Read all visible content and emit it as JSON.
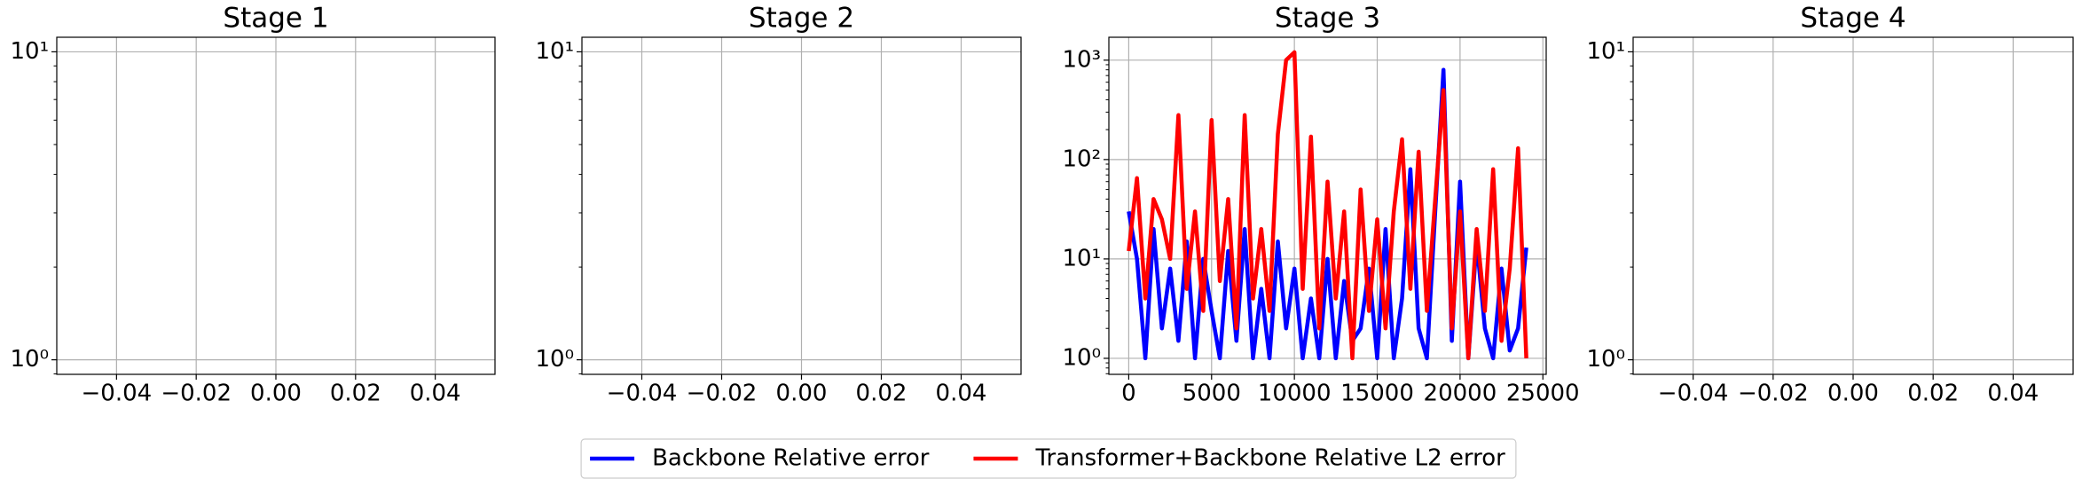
{
  "chart_data": [
    {
      "type": "line",
      "title": "Stage 1",
      "ylog": true,
      "grid": true,
      "xlim": [
        -0.055,
        0.055
      ],
      "xticks": [
        {
          "value": -0.04,
          "label": "−0.04"
        },
        {
          "value": -0.02,
          "label": "−0.02"
        },
        {
          "value": 0,
          "label": "0.00"
        },
        {
          "value": 0.02,
          "label": "0.02"
        },
        {
          "value": 0.04,
          "label": "0.04"
        }
      ],
      "ylim": [
        0.897,
        11.15
      ],
      "yticks": [
        {
          "value": 1,
          "label": "10⁰"
        },
        {
          "value": 10,
          "label": "10¹"
        }
      ]
    },
    {
      "type": "line",
      "title": "Stage 2",
      "ylog": true,
      "grid": true,
      "xlim": [
        -0.055,
        0.055
      ],
      "xticks": [
        {
          "value": -0.04,
          "label": "−0.04"
        },
        {
          "value": -0.02,
          "label": "−0.02"
        },
        {
          "value": 0,
          "label": "0.00"
        },
        {
          "value": 0.02,
          "label": "0.02"
        },
        {
          "value": 0.04,
          "label": "0.04"
        }
      ],
      "ylim": [
        0.897,
        11.15
      ],
      "yticks": [
        {
          "value": 1,
          "label": "10⁰"
        },
        {
          "value": 10,
          "label": "10¹"
        }
      ]
    },
    {
      "type": "line",
      "title": "Stage 3",
      "ylog": true,
      "grid": true,
      "legend": "below",
      "xlim": [
        -1200,
        25200
      ],
      "xticks": [
        0,
        5000,
        10000,
        15000,
        20000,
        25000
      ],
      "ylim": [
        0.69,
        1700
      ],
      "yticks": [
        {
          "value": 1,
          "label": "10⁰"
        },
        {
          "value": 10,
          "label": "10¹"
        },
        {
          "value": 100,
          "label": "10²"
        },
        {
          "value": 1000,
          "label": "10³"
        }
      ],
      "x": [
        0,
        500,
        1000,
        1500,
        2000,
        2500,
        3000,
        3500,
        4000,
        4500,
        5000,
        5500,
        6000,
        6500,
        7000,
        7500,
        8000,
        8500,
        9000,
        9500,
        10000,
        10500,
        11000,
        11500,
        12000,
        12500,
        13000,
        13500,
        14000,
        14500,
        15000,
        15500,
        16000,
        16500,
        17000,
        17500,
        18000,
        18500,
        19000,
        19500,
        20000,
        20500,
        21000,
        21500,
        22000,
        22500,
        23000,
        23500,
        24000
      ],
      "series": [
        {
          "name": "Backbone Relative error",
          "color": "#0000ff",
          "values": [
            30,
            10,
            1,
            20,
            2,
            8,
            1.5,
            15,
            1,
            10,
            3,
            1,
            12,
            1.5,
            20,
            1,
            5,
            1,
            15,
            2,
            8,
            1,
            4,
            1,
            10,
            1,
            6,
            1.5,
            2,
            8,
            1,
            20,
            1,
            4,
            80,
            2,
            1,
            30,
            800,
            1.5,
            60,
            1,
            15,
            2,
            1,
            8,
            1.2,
            2,
            13
          ]
        },
        {
          "name": "Transformer+Backbone Relative L2 error",
          "color": "#ff0000",
          "values": [
            12,
            65,
            4,
            40,
            25,
            10,
            280,
            5,
            30,
            3,
            250,
            6,
            40,
            2,
            280,
            4,
            20,
            3,
            180,
            1000,
            1200,
            5,
            170,
            2,
            60,
            4,
            30,
            1,
            50,
            3,
            25,
            2,
            30,
            160,
            5,
            120,
            3,
            40,
            500,
            2,
            30,
            1,
            20,
            3,
            80,
            1.5,
            8,
            130,
            1
          ]
        }
      ]
    },
    {
      "type": "line",
      "title": "Stage 4",
      "ylog": true,
      "grid": true,
      "xlim": [
        -0.055,
        0.055
      ],
      "xticks": [
        {
          "value": -0.04,
          "label": "−0.04"
        },
        {
          "value": -0.02,
          "label": "−0.02"
        },
        {
          "value": 0,
          "label": "0.00"
        },
        {
          "value": 0.02,
          "label": "0.02"
        },
        {
          "value": 0.04,
          "label": "0.04"
        }
      ],
      "ylim": [
        0.897,
        11.15
      ],
      "yticks": [
        {
          "value": 1,
          "label": "10⁰"
        },
        {
          "value": 10,
          "label": "10¹"
        }
      ]
    }
  ]
}
